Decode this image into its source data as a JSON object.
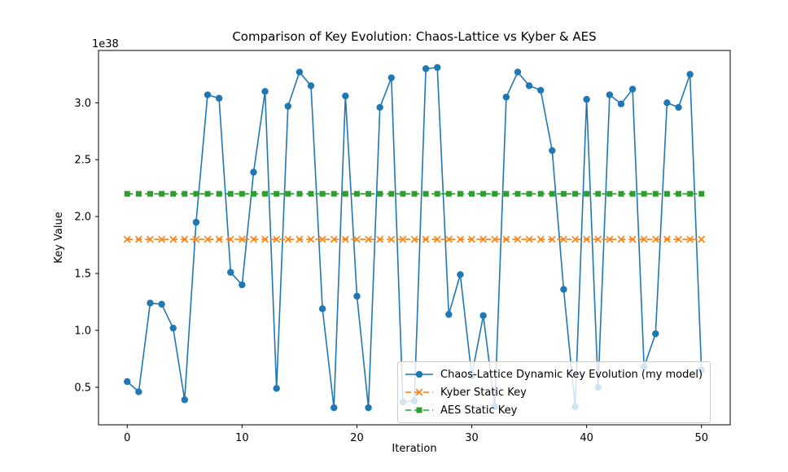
{
  "chart_data": {
    "type": "line",
    "title": "Comparison of Key Evolution: Chaos-Lattice vs Kyber & AES",
    "xlabel": "Iteration",
    "ylabel": "Key Value",
    "y_scale_offset_text": "1e38",
    "grid": false,
    "legend_position": "lower right",
    "xticks": [
      0,
      10,
      20,
      30,
      40,
      50
    ],
    "yticks": [
      0.5,
      1.0,
      1.5,
      2.0,
      2.5,
      3.0
    ],
    "xlim": [
      -2.5,
      52.5
    ],
    "ylim": [
      0.17,
      3.46
    ],
    "x": [
      0,
      1,
      2,
      3,
      4,
      5,
      6,
      7,
      8,
      9,
      10,
      11,
      12,
      13,
      14,
      15,
      16,
      17,
      18,
      19,
      20,
      21,
      22,
      23,
      24,
      25,
      26,
      27,
      28,
      29,
      30,
      31,
      32,
      33,
      34,
      35,
      36,
      37,
      38,
      39,
      40,
      41,
      42,
      43,
      44,
      45,
      46,
      47,
      48,
      49,
      50
    ],
    "series": [
      {
        "name": "Chaos-Lattice Dynamic Key Evolution (my model)",
        "color": "#1f77b4",
        "marker": "circle",
        "linestyle": "solid",
        "values": [
          0.55,
          0.46,
          1.24,
          1.23,
          1.02,
          0.39,
          1.95,
          3.07,
          3.04,
          1.51,
          1.4,
          2.39,
          3.1,
          0.49,
          2.97,
          3.27,
          3.15,
          1.19,
          0.32,
          3.06,
          1.3,
          0.32,
          2.96,
          3.22,
          0.37,
          0.38,
          3.3,
          3.31,
          1.14,
          1.49,
          0.6,
          1.13,
          0.33,
          3.05,
          3.27,
          3.15,
          3.11,
          2.58,
          1.36,
          0.33,
          3.03,
          0.5,
          3.07,
          2.99,
          3.12,
          0.68,
          0.97,
          3.0,
          2.96,
          3.25,
          0.65
        ]
      },
      {
        "name": "Kyber Static Key",
        "color": "#ff7f0e",
        "marker": "x",
        "linestyle": "dashed",
        "constant": 1.8
      },
      {
        "name": "AES Static Key",
        "color": "#2ca02c",
        "marker": "square",
        "linestyle": "dashed",
        "constant": 2.2
      }
    ]
  }
}
